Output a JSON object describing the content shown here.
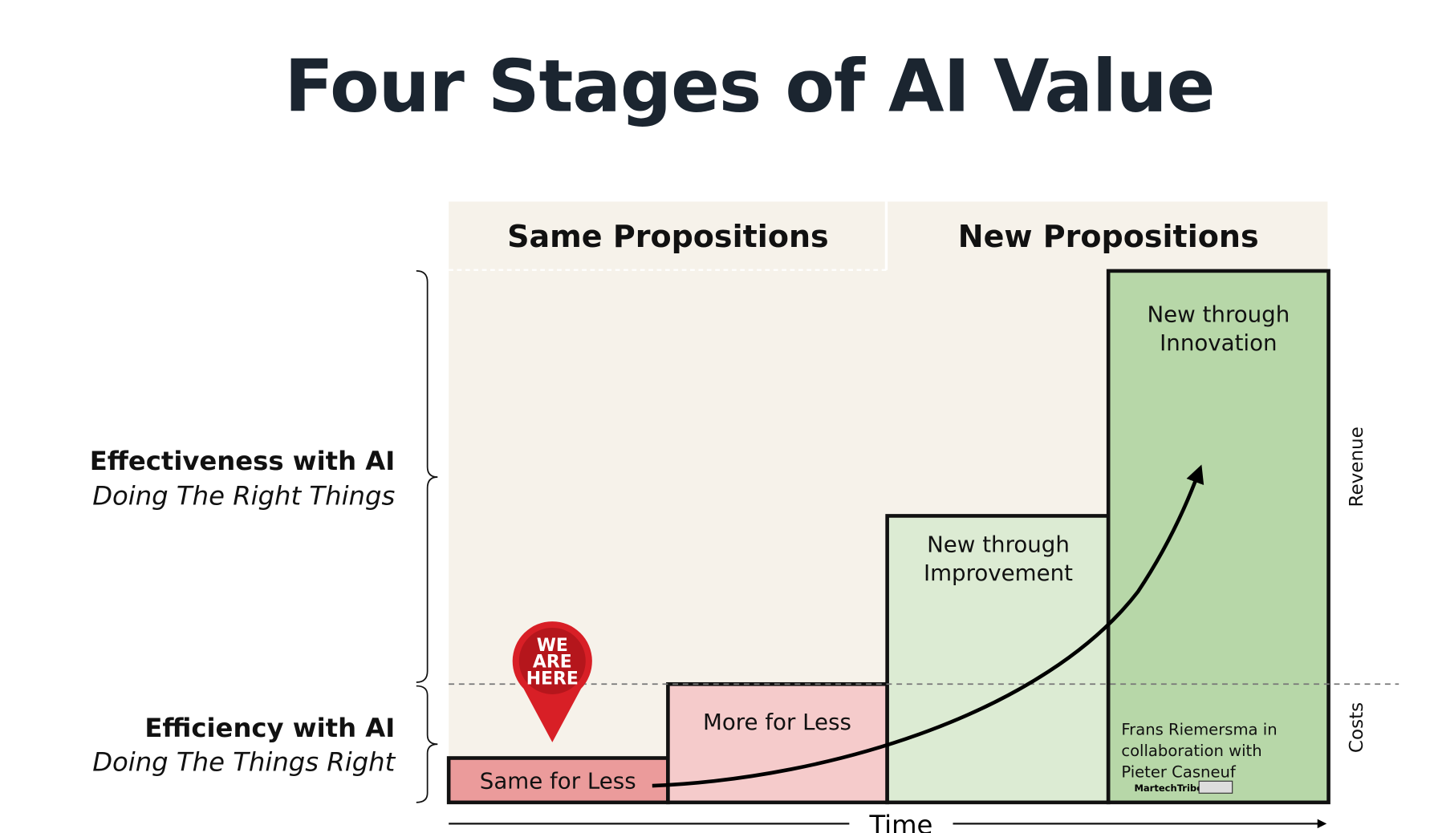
{
  "title": "Four Stages of AI Value",
  "columns": [
    "Same Propositions",
    "New Propositions"
  ],
  "left_labels": [
    {
      "heading": "Effectiveness with AI",
      "subtitle": "Doing The Right Things"
    },
    {
      "heading": "Efficiency with AI",
      "subtitle": "Doing The Things Right"
    }
  ],
  "stages": [
    {
      "lines": [
        "Same for Less"
      ]
    },
    {
      "lines": [
        "More for Less"
      ]
    },
    {
      "lines": [
        "New through",
        "Improvement"
      ]
    },
    {
      "lines": [
        "New through",
        "Innovation"
      ]
    }
  ],
  "axis": {
    "x": "Time",
    "revenue": "Revenue",
    "costs": "Costs"
  },
  "marker": {
    "lines": [
      "WE",
      "ARE",
      "HERE"
    ]
  },
  "credit": {
    "lines": [
      "Frans Riemersma in",
      "collaboration with",
      "Pieter Casneuf"
    ],
    "logo": "MartechTribe"
  }
}
